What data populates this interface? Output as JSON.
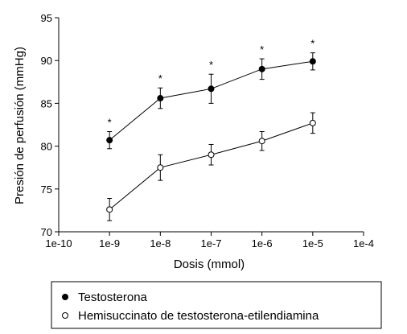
{
  "chart_data": {
    "type": "line",
    "xscale": "log",
    "xlabel": "Dosis (mmol)",
    "ylabel": "Presión de perfusión (mmHg)",
    "x_ticks": [
      "1e-10",
      "1e-9",
      "1e-8",
      "1e-7",
      "1e-6",
      "1e-5",
      "1e-4"
    ],
    "x_tick_values": [
      1e-10,
      1e-09,
      1e-08,
      1e-07,
      1e-06,
      1e-05,
      0.0001
    ],
    "y_ticks": [
      "70",
      "75",
      "80",
      "85",
      "90",
      "95"
    ],
    "y_tick_values": [
      70,
      75,
      80,
      85,
      90,
      95
    ],
    "xlim": [
      1e-10,
      0.0001
    ],
    "ylim": [
      70,
      95
    ],
    "grid": false,
    "legend_position": "bottom",
    "series": [
      {
        "name": "Testosterona",
        "marker": "filled-circle",
        "color": "#000000",
        "x": [
          1e-09,
          1e-08,
          1e-07,
          1e-06,
          1e-05
        ],
        "y": [
          80.7,
          85.6,
          86.7,
          89.0,
          89.9
        ],
        "err": [
          1.0,
          1.2,
          1.7,
          1.2,
          1.0
        ],
        "annotations": [
          "*",
          "*",
          "*",
          "*",
          "*"
        ]
      },
      {
        "name": "Hemisuccinato de testosterona-etilendiamina",
        "marker": "open-circle",
        "color": "#000000",
        "x": [
          1e-09,
          1e-08,
          1e-07,
          1e-06,
          1e-05
        ],
        "y": [
          72.6,
          77.5,
          79.0,
          80.6,
          82.7
        ],
        "err": [
          1.3,
          1.5,
          1.2,
          1.1,
          1.2
        ],
        "annotations": []
      }
    ]
  }
}
